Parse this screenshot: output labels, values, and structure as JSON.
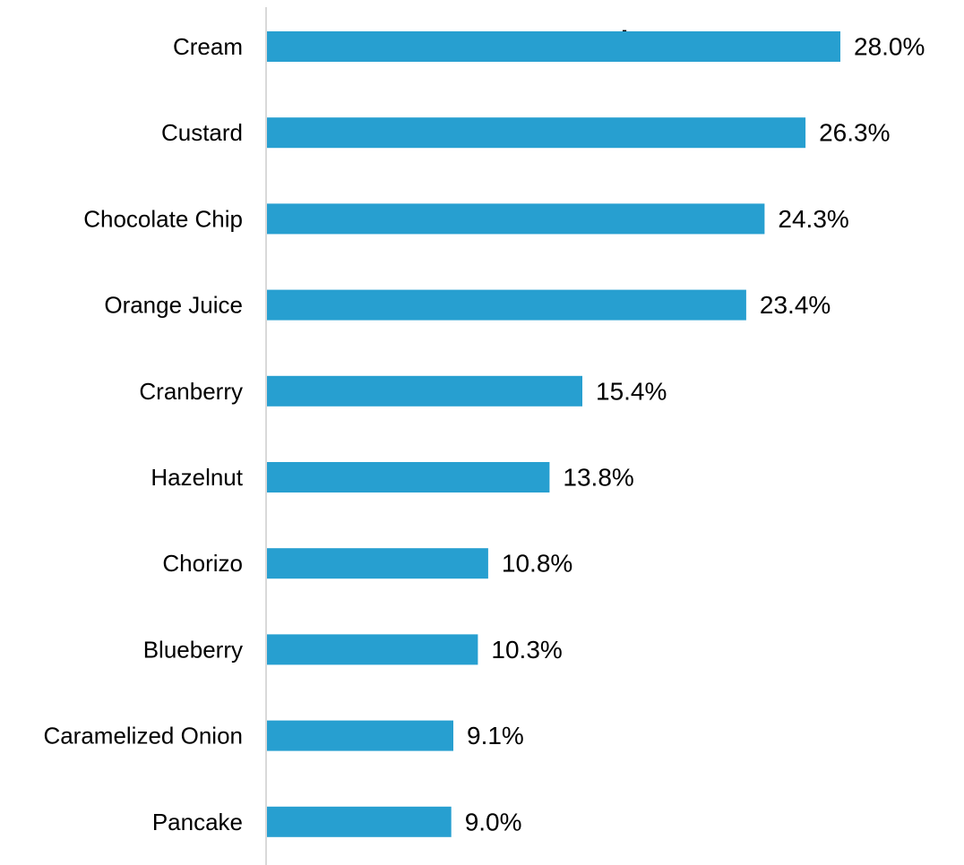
{
  "chart_data": {
    "type": "bar",
    "orientation": "horizontal",
    "title": ".",
    "categories": [
      "Cream",
      "Custard",
      "Chocolate Chip",
      "Orange Juice",
      "Cranberry",
      "Hazelnut",
      "Chorizo",
      "Blueberry",
      "Caramelized Onion",
      "Pancake"
    ],
    "values": [
      28.0,
      26.3,
      24.3,
      23.4,
      15.4,
      13.8,
      10.8,
      10.3,
      9.1,
      9.0
    ],
    "value_labels": [
      "28.0%",
      "26.3%",
      "24.3%",
      "23.4%",
      "15.4%",
      "13.8%",
      "10.8%",
      "10.3%",
      "9.1%",
      "9.0%"
    ],
    "unit": "%",
    "xlim": [
      0,
      28.0
    ],
    "grid": false,
    "legend": "none",
    "bar_color": "#279fd0",
    "axis_color": "#d9d9d9"
  }
}
